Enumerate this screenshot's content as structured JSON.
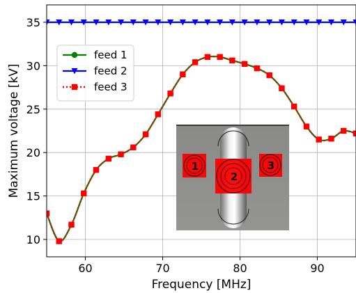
{
  "chart_data": {
    "type": "line",
    "xlabel": "Frequency [MHz]",
    "ylabel": "Maximum voltage [kV]",
    "xlim": [
      55,
      95
    ],
    "ylim": [
      8,
      37
    ],
    "xticks": [
      60,
      70,
      80,
      90
    ],
    "yticks": [
      10,
      15,
      20,
      25,
      30,
      35
    ],
    "grid": true,
    "legend_position": "upper-left",
    "x": [
      55,
      56.6,
      58.2,
      59.8,
      61.4,
      63.0,
      64.6,
      66.2,
      67.8,
      69.4,
      71.0,
      72.6,
      74.2,
      75.8,
      77.4,
      79.0,
      80.6,
      82.2,
      83.8,
      85.4,
      87.0,
      88.6,
      90.2,
      91.8,
      93.4,
      95
    ],
    "series": [
      {
        "name": "feed 1",
        "color": "#008000",
        "marker": "circle",
        "line": "solid",
        "values": [
          13.0,
          9.8,
          11.7,
          15.3,
          18.0,
          19.3,
          19.8,
          20.6,
          22.1,
          24.4,
          26.8,
          29.0,
          30.4,
          31.0,
          31.0,
          30.6,
          30.2,
          29.7,
          28.9,
          27.4,
          25.3,
          23.0,
          21.5,
          21.6,
          22.5,
          22.2
        ]
      },
      {
        "name": "feed 2",
        "color": "#0000ff",
        "marker": "triangle-down",
        "line": "solid",
        "values": [
          35,
          35,
          35,
          35,
          35,
          35,
          35,
          35,
          35,
          35,
          35,
          35,
          35,
          35,
          35,
          35,
          35,
          35,
          35,
          35,
          35,
          35,
          35,
          35,
          35,
          35
        ]
      },
      {
        "name": "feed 3",
        "color": "#ff0000",
        "marker": "square",
        "line": "dotted",
        "values": [
          13.0,
          9.8,
          11.7,
          15.3,
          18.0,
          19.3,
          19.8,
          20.6,
          22.1,
          24.4,
          26.8,
          29.0,
          30.4,
          31.0,
          31.0,
          30.6,
          30.2,
          29.7,
          28.9,
          27.4,
          25.3,
          23.0,
          21.5,
          21.6,
          22.5,
          22.2
        ]
      }
    ],
    "inset_labels": [
      "1",
      "2",
      "3"
    ]
  }
}
